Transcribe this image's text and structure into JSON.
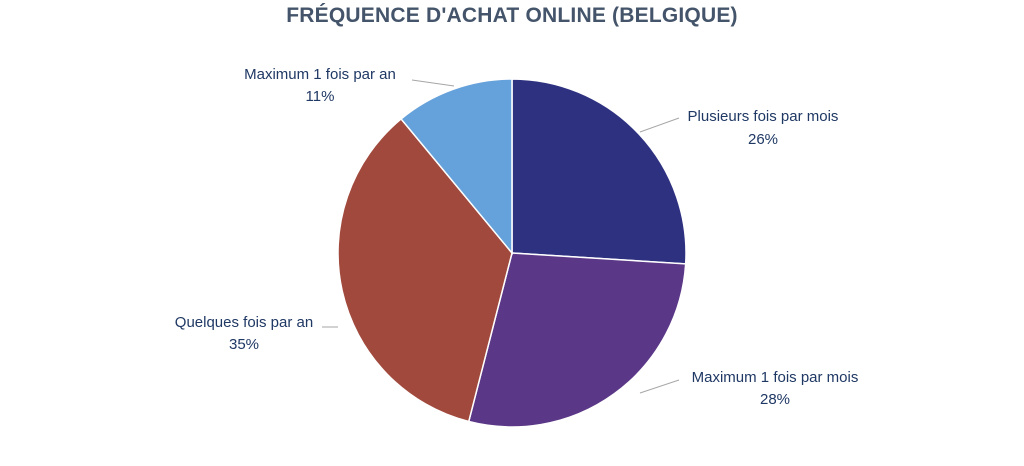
{
  "chart_data": {
    "type": "pie",
    "title": "FRÉQUENCE D'ACHAT ONLINE (BELGIQUE)",
    "slices": [
      {
        "label": "Plusieurs fois par mois",
        "value": 26,
        "value_label": "26%",
        "color": "#2e3180"
      },
      {
        "label": "Maximum 1 fois par mois",
        "value": 28,
        "value_label": "28%",
        "color": "#5b3787"
      },
      {
        "label": "Quelques fois par an",
        "value": 35,
        "value_label": "35%",
        "color": "#a0493c"
      },
      {
        "label": "Maximum 1 fois par an",
        "value": 11,
        "value_label": "11%",
        "color": "#65a1da"
      }
    ],
    "start_angle": "12 o'clock",
    "direction": "clockwise",
    "legend": "none",
    "data_labels": "outside with leader lines"
  }
}
